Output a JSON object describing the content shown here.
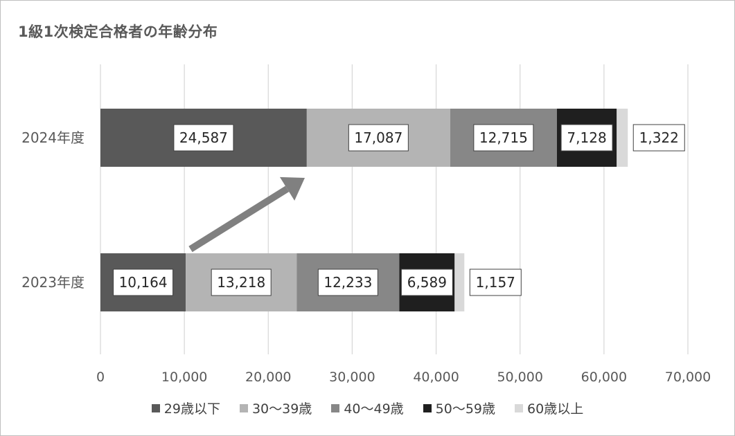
{
  "chart_data": {
    "type": "bar",
    "orientation": "horizontal",
    "stacked": true,
    "title": "1級1次検定合格者の年齢分布",
    "categories": [
      "2024年度",
      "2023年度"
    ],
    "xlim": [
      0,
      70000
    ],
    "xticks": [
      0,
      10000,
      20000,
      30000,
      40000,
      50000,
      60000,
      70000
    ],
    "xtick_labels": [
      "0",
      "10,000",
      "20,000",
      "30,000",
      "40,000",
      "50,000",
      "60,000",
      "70,000"
    ],
    "grid": true,
    "legend_position": "bottom",
    "series": [
      {
        "name": "29歳以下",
        "color": "#595959",
        "values": [
          24587,
          10164
        ],
        "labels": [
          "24,587",
          "10,164"
        ]
      },
      {
        "name": "30～39歳",
        "color": "#b4b4b4",
        "values": [
          17087,
          13218
        ],
        "labels": [
          "17,087",
          "13,218"
        ]
      },
      {
        "name": "40～49歳",
        "color": "#878787",
        "values": [
          12715,
          12233
        ],
        "labels": [
          "12,715",
          "12,233"
        ]
      },
      {
        "name": "50～59歳",
        "color": "#1f1f1f",
        "values": [
          7128,
          6589
        ],
        "labels": [
          "7,128",
          "6,589"
        ]
      },
      {
        "name": "60歳以上",
        "color": "#d9d9d9",
        "values": [
          1322,
          1157
        ],
        "labels": [
          "1,322",
          "1,157"
        ]
      }
    ],
    "annotation": {
      "type": "arrow",
      "from_category": "2023年度",
      "to_category": "2024年度",
      "color": "#808080"
    }
  }
}
